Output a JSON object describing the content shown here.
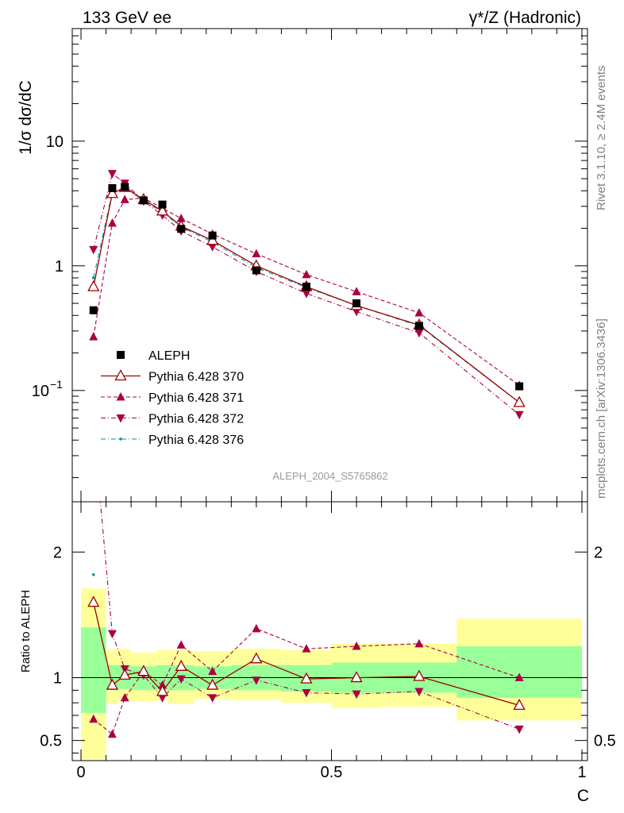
{
  "header": {
    "left": "133 GeV ee",
    "right": "γ*/Z (Hadronic)"
  },
  "side_labels": {
    "rivet": "Rivet 3.1.10, ≥ 2.4M events",
    "mcplots": "mcplots.cern.ch [arXiv:1306.3436]"
  },
  "watermark": "ALEPH_2004_S5765862",
  "axis_labels": {
    "main_y": "1/σ  dσ/dC",
    "ratio_y": "Ratio to ALEPH",
    "x": "C"
  },
  "colors": {
    "data": "#000000",
    "p370": "#990000",
    "p371": "#aa0044",
    "p372": "#aa0044",
    "p376": "#009999",
    "band_inner": "#99ff99",
    "band_outer": "#ffff99"
  },
  "chart_data": [
    {
      "type": "scatter",
      "title": "",
      "ylabel": "1/σ  dσ/dC",
      "yscale": "log",
      "xlim": [
        0,
        1
      ],
      "ylim": [
        0.0128,
        80
      ],
      "y_ticks": [
        {
          "value": 0.1,
          "label": "10",
          "exp": "−1"
        },
        {
          "value": 1,
          "label": "1"
        },
        {
          "value": 10,
          "label": "10"
        }
      ],
      "legend_position": "lower-left",
      "bins": [
        [
          0,
          0.05
        ],
        [
          0.05,
          0.075
        ],
        [
          0.075,
          0.1
        ],
        [
          0.1,
          0.15
        ],
        [
          0.15,
          0.175
        ],
        [
          0.175,
          0.225
        ],
        [
          0.225,
          0.3
        ],
        [
          0.3,
          0.4
        ],
        [
          0.4,
          0.5
        ],
        [
          0.5,
          0.6
        ],
        [
          0.6,
          0.75
        ],
        [
          0.75,
          1.0
        ]
      ],
      "series": [
        {
          "name": "ALEPH",
          "marker": "square-filled",
          "x": [
            0.025,
            0.0625,
            0.0875,
            0.125,
            0.1625,
            0.2,
            0.2625,
            0.35,
            0.45,
            0.55,
            0.675,
            0.875
          ],
          "y": [
            0.44,
            4.2,
            4.3,
            3.35,
            3.1,
            1.98,
            1.75,
            0.92,
            0.68,
            0.5,
            0.33,
            0.108
          ]
        },
        {
          "name": "Pythia 6.428 370",
          "marker": "triangle-up-open",
          "line": "solid",
          "x": [
            0.025,
            0.0625,
            0.0875,
            0.125,
            0.1625,
            0.2,
            0.2625,
            0.35,
            0.45,
            0.55,
            0.675,
            0.875
          ],
          "y": [
            0.68,
            3.8,
            4.25,
            3.4,
            2.75,
            2.08,
            1.6,
            1.0,
            0.68,
            0.48,
            0.335,
            0.08
          ]
        },
        {
          "name": "Pythia 6.428 371",
          "marker": "triangle-up-filled",
          "line": "dashed",
          "x": [
            0.025,
            0.0625,
            0.0875,
            0.125,
            0.1625,
            0.2,
            0.2625,
            0.35,
            0.45,
            0.55,
            0.675,
            0.875
          ],
          "y": [
            0.27,
            2.2,
            3.4,
            3.5,
            2.9,
            2.4,
            1.8,
            1.25,
            0.85,
            0.62,
            0.42,
            0.11
          ]
        },
        {
          "name": "Pythia 6.428 372",
          "marker": "triangle-down-filled",
          "line": "dashdot",
          "x": [
            0.025,
            0.0625,
            0.0875,
            0.125,
            0.1625,
            0.2,
            0.2625,
            0.35,
            0.45,
            0.55,
            0.675,
            0.875
          ],
          "y": [
            1.35,
            5.5,
            4.6,
            3.3,
            2.55,
            1.9,
            1.42,
            0.9,
            0.6,
            0.43,
            0.29,
            0.064
          ]
        },
        {
          "name": "Pythia 6.428 376",
          "marker": "dot",
          "line": "dashdot",
          "x": [
            0.025,
            0.0625,
            0.0875,
            0.125,
            0.1625,
            0.2,
            0.2625,
            0.35,
            0.45,
            0.55,
            0.675,
            0.875
          ],
          "y": [
            0.8,
            3.9,
            4.2,
            3.35,
            2.7,
            2.05,
            1.55,
            0.97,
            0.67,
            0.48,
            0.33,
            0.08
          ]
        }
      ]
    },
    {
      "type": "line",
      "ylabel": "Ratio to ALEPH",
      "xlabel": "C",
      "xlim": [
        0,
        1
      ],
      "ylim": [
        0.34,
        2.4
      ],
      "x_ticks": [
        {
          "value": 0,
          "label": "0"
        },
        {
          "value": 0.5,
          "label": "0.5"
        },
        {
          "value": 1,
          "label": "1"
        }
      ],
      "y_ticks_left": [
        {
          "value": 0.5,
          "label": "0.5"
        },
        {
          "value": 1,
          "label": "1"
        },
        {
          "value": 2,
          "label": "2"
        }
      ],
      "y_ticks_right": [
        {
          "value": 0.5,
          "label": "0.5"
        },
        {
          "value": 2,
          "label": "2"
        }
      ],
      "bands": {
        "inner_lo": [
          0.72,
          0.9,
          0.91,
          0.9,
          0.9,
          0.9,
          0.91,
          0.9,
          0.89,
          0.88,
          0.88,
          0.84
        ],
        "inner_hi": [
          1.4,
          1.1,
          1.1,
          1.09,
          1.1,
          1.1,
          1.09,
          1.1,
          1.1,
          1.12,
          1.12,
          1.25
        ],
        "outer_lo": [
          0.35,
          0.79,
          0.82,
          0.81,
          0.82,
          0.79,
          0.83,
          0.82,
          0.8,
          0.76,
          0.77,
          0.66
        ],
        "outer_hi": [
          1.71,
          1.22,
          1.23,
          1.2,
          1.22,
          1.22,
          1.21,
          1.23,
          1.22,
          1.27,
          1.27,
          1.47
        ]
      },
      "series": [
        {
          "name": "Pythia 6.428 370",
          "x": [
            0.025,
            0.0625,
            0.0875,
            0.125,
            0.1625,
            0.2,
            0.2625,
            0.35,
            0.45,
            0.55,
            0.675,
            0.875
          ],
          "y": [
            1.6,
            0.94,
            1.02,
            1.05,
            0.89,
            1.09,
            0.94,
            1.15,
            0.99,
            1.0,
            1.01,
            0.78
          ]
        },
        {
          "name": "Pythia 6.428 371",
          "x": [
            0.025,
            0.0625,
            0.0875,
            0.125,
            0.1625,
            0.2,
            0.2625,
            0.35,
            0.45,
            0.55,
            0.675,
            0.875
          ],
          "y": [
            0.67,
            0.55,
            0.84,
            1.05,
            0.94,
            1.26,
            1.05,
            1.39,
            1.23,
            1.25,
            1.27,
            1.0
          ]
        },
        {
          "name": "Pythia 6.428 372",
          "x": [
            0.025,
            0.0625,
            0.0875,
            0.125,
            0.1625,
            0.2,
            0.2625,
            0.35,
            0.45,
            0.55,
            0.675,
            0.875
          ],
          "y": [
            3.0,
            1.35,
            1.07,
            1.02,
            0.84,
            0.99,
            0.84,
            0.98,
            0.88,
            0.87,
            0.89,
            0.59
          ]
        },
        {
          "name": "Pythia 6.428 376",
          "x": [
            0.025
          ],
          "y": [
            1.82
          ]
        }
      ]
    }
  ]
}
